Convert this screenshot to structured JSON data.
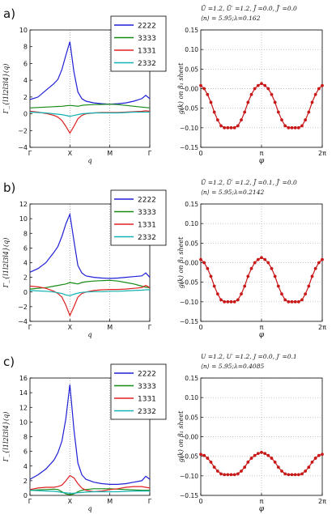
{
  "chart_data": [
    {
      "panel_label": "a)",
      "left": {
        "type": "line",
        "ylabel": "Γ_{l1l2l3l4}(q)",
        "xlabel": "q",
        "x_ticks": [
          "Γ",
          "X",
          "M",
          "Γ"
        ],
        "ylim": [
          -4,
          10
        ],
        "y_ticks": [
          "−4",
          "−2",
          "0",
          "2",
          "4",
          "6",
          "8",
          "10"
        ],
        "legend_position": "top-right",
        "x": [
          0,
          0.2,
          0.4,
          0.6,
          0.7,
          0.8,
          0.9,
          1.0,
          1.1,
          1.2,
          1.3,
          1.4,
          1.6,
          1.8,
          2.0,
          2.2,
          2.4,
          2.6,
          2.8,
          2.9,
          3.0
        ],
        "series": [
          {
            "name": "2222",
            "color": "#1f1fd6",
            "values": [
              1.7,
              2.0,
              2.8,
              3.6,
              4.1,
              5.3,
              7.0,
              8.6,
              5.0,
              2.6,
              1.8,
              1.5,
              1.3,
              1.2,
              1.15,
              1.2,
              1.3,
              1.5,
              1.8,
              2.2,
              1.8
            ]
          },
          {
            "name": "3333",
            "color": "#138a13",
            "values": [
              0.7,
              0.75,
              0.8,
              0.85,
              0.88,
              0.9,
              0.95,
              1.0,
              0.95,
              0.9,
              1.0,
              1.05,
              1.1,
              1.12,
              1.15,
              1.1,
              1.0,
              0.9,
              0.8,
              0.75,
              0.7
            ]
          },
          {
            "name": "1331",
            "color": "#e02020",
            "values": [
              0.3,
              0.2,
              0.05,
              -0.2,
              -0.4,
              -0.8,
              -1.5,
              -2.3,
              -1.5,
              -0.6,
              -0.2,
              0.0,
              0.1,
              0.15,
              0.15,
              0.15,
              0.2,
              0.25,
              0.3,
              0.35,
              0.3
            ]
          },
          {
            "name": "2332",
            "color": "#12b2b2",
            "values": [
              0.2,
              0.15,
              0.1,
              0.0,
              -0.05,
              -0.1,
              -0.2,
              -0.3,
              -0.2,
              -0.1,
              0.0,
              0.05,
              0.1,
              0.1,
              0.1,
              0.1,
              0.15,
              0.2,
              0.2,
              0.2,
              0.2
            ]
          }
        ]
      },
      "right": {
        "type": "line",
        "title_lines": [
          "Ū =1.2, Ū′ =1.2, J̄ =0.0, J̄′ =0.0",
          "⟨n⟩ = 5.95;λ=0.162"
        ],
        "ylabel": "g(k) on β₁ sheet",
        "xlabel": "φ",
        "x_ticks": [
          "0",
          "π",
          "2π"
        ],
        "ylim": [
          -0.15,
          0.15
        ],
        "y_ticks": [
          "−0.15",
          "−0.10",
          "−0.05",
          "0.00",
          "0.05",
          "0.10",
          "0.15"
        ],
        "color": "#c81818",
        "values": [
          0.008,
          0.0,
          -0.015,
          -0.035,
          -0.06,
          -0.08,
          -0.095,
          -0.1,
          -0.1,
          -0.1,
          -0.1,
          -0.095,
          -0.08,
          -0.06,
          -0.035,
          -0.015,
          0.0,
          0.008,
          0.013,
          0.008,
          0.0,
          -0.015,
          -0.035,
          -0.06,
          -0.08,
          -0.095,
          -0.1,
          -0.1,
          -0.1,
          -0.1,
          -0.095,
          -0.08,
          -0.06,
          -0.035,
          -0.015,
          0.0,
          0.008
        ]
      }
    },
    {
      "panel_label": "b)",
      "left": {
        "type": "line",
        "ylabel": "Γ_{l1l2l3l4}(q)",
        "xlabel": "q",
        "x_ticks": [
          "Γ",
          "X",
          "M",
          "Γ"
        ],
        "ylim": [
          -4,
          12
        ],
        "y_ticks": [
          "−4",
          "−2",
          "0",
          "2",
          "4",
          "6",
          "8",
          "10",
          "12"
        ],
        "legend_position": "top-right",
        "x": [
          0,
          0.2,
          0.4,
          0.6,
          0.7,
          0.8,
          0.9,
          1.0,
          1.1,
          1.2,
          1.3,
          1.4,
          1.6,
          1.8,
          2.0,
          2.2,
          2.4,
          2.6,
          2.8,
          2.9,
          3.0
        ],
        "series": [
          {
            "name": "2222",
            "color": "#1f1fd6",
            "values": [
              2.7,
              3.2,
              4.0,
              5.4,
              6.2,
              7.6,
              9.3,
              10.6,
              7.0,
              3.6,
              2.6,
              2.2,
              2.0,
              1.9,
              1.85,
              1.9,
              2.0,
              2.1,
              2.2,
              2.6,
              2.0
            ]
          },
          {
            "name": "3333",
            "color": "#138a13",
            "values": [
              0.4,
              0.5,
              0.6,
              0.8,
              0.9,
              1.0,
              1.1,
              1.3,
              1.2,
              1.1,
              1.3,
              1.4,
              1.5,
              1.55,
              1.6,
              1.5,
              1.3,
              1.1,
              0.8,
              0.65,
              0.6
            ]
          },
          {
            "name": "1331",
            "color": "#e02020",
            "values": [
              0.8,
              0.7,
              0.5,
              0.1,
              -0.2,
              -0.7,
              -1.8,
              -3.2,
              -2.0,
              -0.7,
              -0.2,
              0.0,
              0.2,
              0.3,
              0.35,
              0.35,
              0.4,
              0.5,
              0.6,
              0.9,
              0.6
            ]
          },
          {
            "name": "2332",
            "color": "#12b2b2",
            "values": [
              0.2,
              0.15,
              0.1,
              0.0,
              -0.1,
              -0.2,
              -0.4,
              -0.5,
              -0.3,
              -0.15,
              -0.05,
              0.0,
              0.05,
              0.05,
              0.1,
              0.1,
              0.15,
              0.2,
              0.25,
              0.3,
              0.3
            ]
          }
        ]
      },
      "right": {
        "type": "line",
        "title_lines": [
          "Ū =1.2, Ū′ =1.2, J̄ =0.1, J̄′ =0.0",
          "⟨n⟩ = 5.95;λ=0.2142"
        ],
        "ylabel": "g(k) on β₁ sheet",
        "xlabel": "φ",
        "x_ticks": [
          "0",
          "π",
          "2π"
        ],
        "ylim": [
          -0.15,
          0.15
        ],
        "y_ticks": [
          "−0.15",
          "−0.10",
          "−0.05",
          "0.00",
          "0.05",
          "0.10",
          "0.15"
        ],
        "color": "#c81818",
        "values": [
          0.008,
          0.0,
          -0.015,
          -0.035,
          -0.06,
          -0.08,
          -0.095,
          -0.1,
          -0.1,
          -0.1,
          -0.1,
          -0.095,
          -0.08,
          -0.06,
          -0.035,
          -0.015,
          0.0,
          0.008,
          0.013,
          0.008,
          0.0,
          -0.015,
          -0.035,
          -0.06,
          -0.08,
          -0.095,
          -0.1,
          -0.1,
          -0.1,
          -0.1,
          -0.095,
          -0.08,
          -0.06,
          -0.035,
          -0.015,
          0.0,
          0.008
        ]
      }
    },
    {
      "panel_label": "c)",
      "left": {
        "type": "line",
        "ylabel": "Γ_{l1l2l3l4}(q)",
        "xlabel": "q",
        "x_ticks": [
          "Γ",
          "X",
          "M",
          "Γ"
        ],
        "ylim": [
          0,
          16
        ],
        "y_ticks": [
          "0",
          "2",
          "4",
          "6",
          "8",
          "10",
          "12",
          "14",
          "16"
        ],
        "legend_position": "top-right",
        "x": [
          0,
          0.2,
          0.4,
          0.6,
          0.7,
          0.8,
          0.9,
          1.0,
          1.1,
          1.2,
          1.3,
          1.4,
          1.6,
          1.8,
          2.0,
          2.2,
          2.4,
          2.6,
          2.8,
          2.9,
          3.0
        ],
        "series": [
          {
            "name": "2222",
            "color": "#1f1fd6",
            "values": [
              2.2,
              2.8,
              3.6,
              4.8,
              5.8,
              7.4,
              10.5,
              15.1,
              9.0,
              4.4,
              2.8,
              2.2,
              1.8,
              1.6,
              1.5,
              1.5,
              1.6,
              1.8,
              2.0,
              2.6,
              2.2
            ]
          },
          {
            "name": "3333",
            "color": "#138a13",
            "values": [
              0.7,
              0.75,
              0.8,
              0.85,
              0.8,
              0.5,
              0.2,
              0.1,
              0.2,
              0.5,
              0.7,
              0.8,
              0.9,
              0.9,
              0.9,
              0.85,
              0.8,
              0.75,
              0.7,
              0.7,
              0.7
            ]
          },
          {
            "name": "1331",
            "color": "#e02020",
            "values": [
              0.8,
              1.0,
              1.1,
              1.1,
              1.2,
              1.4,
              2.0,
              2.7,
              2.4,
              1.6,
              1.0,
              0.7,
              0.5,
              0.6,
              0.8,
              0.9,
              1.1,
              1.2,
              1.2,
              1.1,
              1.0
            ]
          },
          {
            "name": "2332",
            "color": "#12b2b2",
            "values": [
              0.7,
              0.65,
              0.6,
              0.55,
              0.5,
              0.4,
              0.35,
              0.3,
              0.3,
              0.35,
              0.4,
              0.45,
              0.5,
              0.5,
              0.5,
              0.5,
              0.55,
              0.6,
              0.6,
              0.6,
              0.6
            ]
          }
        ]
      },
      "right": {
        "type": "line",
        "title_lines": [
          "U =1.2, U′ =1.2, J =0.0, J′ =0.1",
          "⟨n⟩ = 5.95;λ=0.4085"
        ],
        "ylabel": "g(k) on β₁ sheet",
        "xlabel": "φ",
        "x_ticks": [
          "0",
          "π",
          "2π"
        ],
        "ylim": [
          -0.15,
          0.15
        ],
        "y_ticks": [
          "−0.15",
          "−0.10",
          "−0.05",
          "0.00",
          "0.05",
          "0.10",
          "0.15"
        ],
        "color": "#c81818",
        "values": [
          -0.045,
          -0.048,
          -0.055,
          -0.065,
          -0.078,
          -0.088,
          -0.095,
          -0.097,
          -0.097,
          -0.097,
          -0.097,
          -0.095,
          -0.088,
          -0.078,
          -0.065,
          -0.055,
          -0.048,
          -0.043,
          -0.04,
          -0.043,
          -0.048,
          -0.055,
          -0.065,
          -0.078,
          -0.088,
          -0.095,
          -0.097,
          -0.097,
          -0.097,
          -0.097,
          -0.095,
          -0.088,
          -0.078,
          -0.065,
          -0.055,
          -0.048,
          -0.045
        ]
      }
    }
  ]
}
